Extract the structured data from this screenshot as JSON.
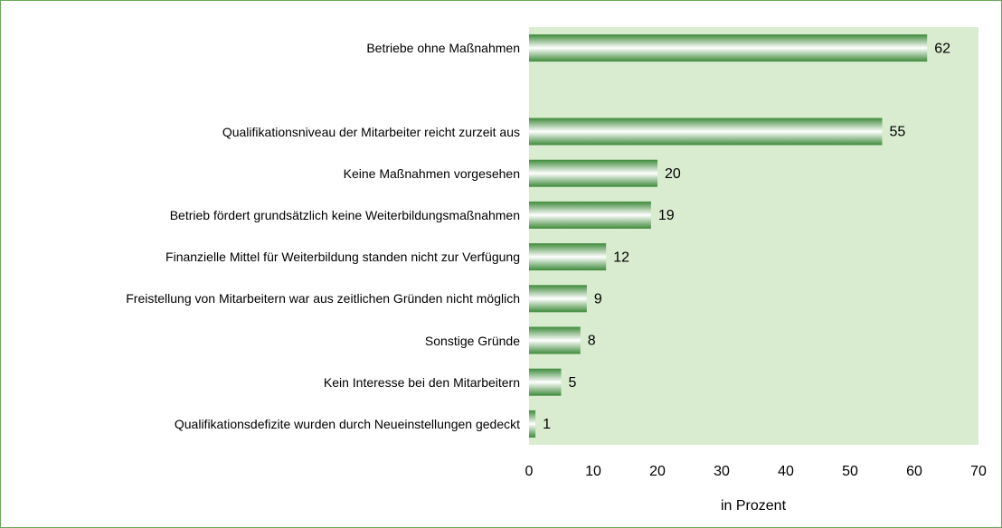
{
  "chart_data": {
    "type": "barh",
    "categories": [
      "Betriebe ohne Maßnahmen",
      null,
      "Qualifikationsniveau der Mitarbeiter reicht zurzeit aus",
      "Keine Maßnahmen vorgesehen",
      "Betrieb fördert grundsätzlich keine Weiterbildungsmaßnahmen",
      "Finanzielle Mittel für Weiterbildung standen nicht zur Verfügung",
      "Freistellung von Mitarbeitern war aus zeitlichen Gründen nicht möglich",
      "Sonstige Gründe",
      "Kein Interesse bei den Mitarbeitern",
      "Qualifikationsdefizite wurden durch Neueinstellungen gedeckt"
    ],
    "values": [
      62,
      null,
      55,
      20,
      19,
      12,
      9,
      8,
      5,
      1
    ],
    "color": "#3e8a3a",
    "xlim": [
      0,
      70
    ],
    "xticks": [
      0,
      10,
      20,
      30,
      40,
      50,
      60,
      70
    ],
    "xlabel": "in Prozent"
  }
}
